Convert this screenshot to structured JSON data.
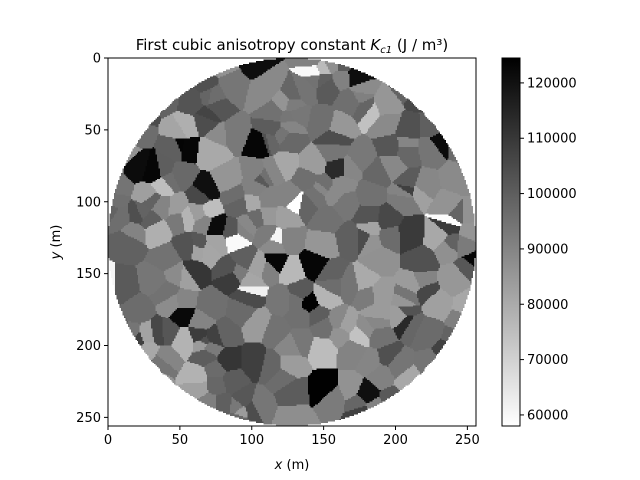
{
  "chart_data": {
    "type": "heatmap",
    "title_prefix": "First cubic anisotropy constant ",
    "title_symbol": "K",
    "title_subscript": "c1",
    "title_suffix": " (J / m³)",
    "xlabel": {
      "var": "x",
      "unit": " (m)"
    },
    "ylabel": {
      "var": "y",
      "unit": " (m)"
    },
    "xlim": [
      0,
      256
    ],
    "ylim": [
      256,
      0
    ],
    "xticks": [
      0,
      50,
      100,
      150,
      200,
      250
    ],
    "yticks": [
      0,
      50,
      100,
      150,
      200,
      250
    ],
    "colormap": "gray_r",
    "colorbar": {
      "range": [
        58000,
        124500
      ],
      "ticks": [
        60000,
        70000,
        80000,
        90000,
        100000,
        110000,
        120000
      ]
    },
    "description_mask": "circular region of radius 128 centered at (128,128); voronoi-like grains with random anisotropy values",
    "grain_count": 360,
    "value_range": [
      58000,
      124500
    ]
  }
}
